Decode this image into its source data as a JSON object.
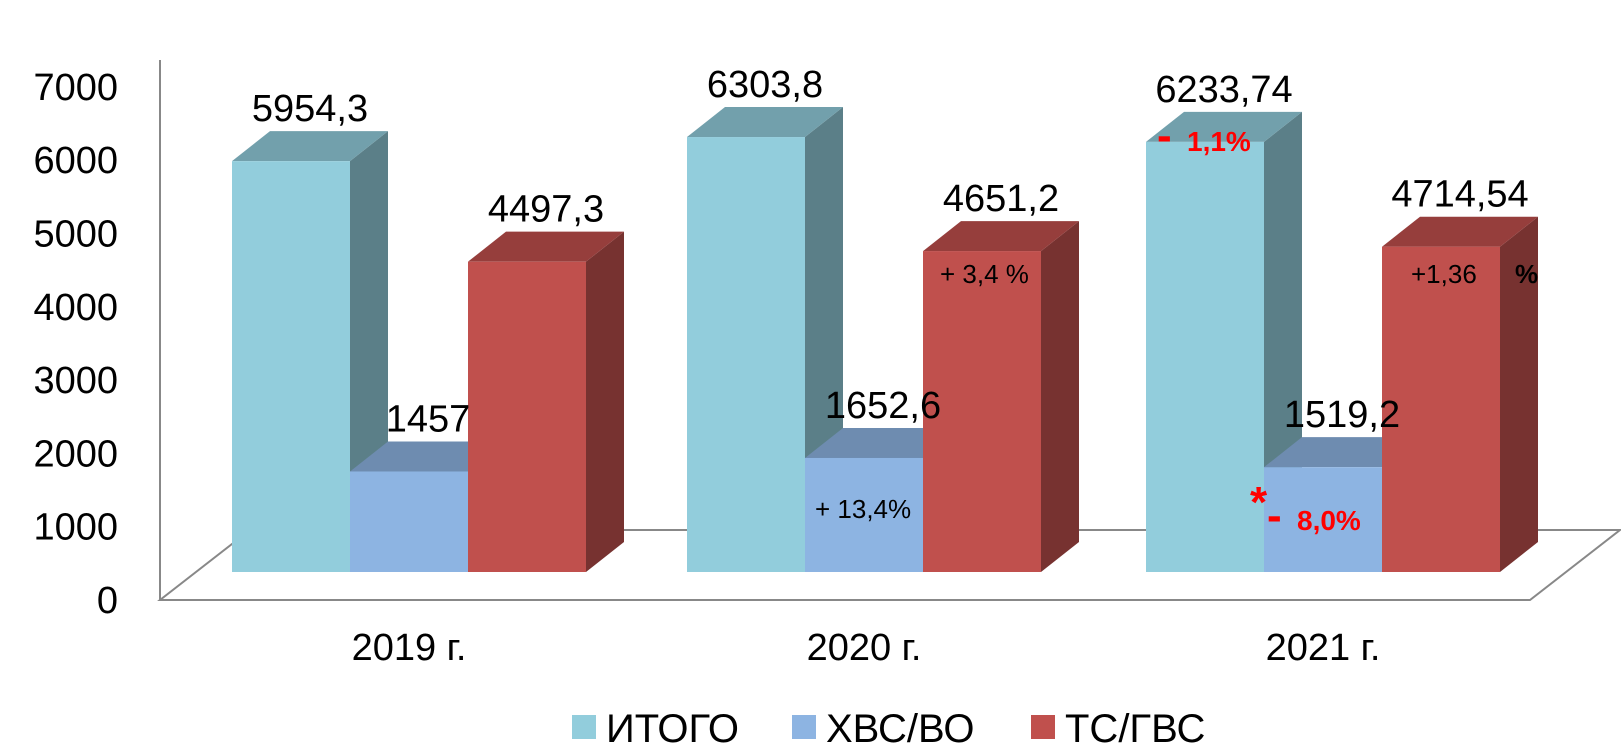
{
  "chart_data": {
    "type": "bar",
    "style": "3d-clustered",
    "categories": [
      "2019 г.",
      "2020 г.",
      "2021 г."
    ],
    "series": [
      {
        "name": "ИТОГО",
        "values": [
          5954.3,
          6303.8,
          6233.74
        ],
        "labels": [
          "5954,3",
          "6303,8",
          "6233,74"
        ],
        "color": "#92CDDC"
      },
      {
        "name": "ХВС/ВО",
        "values": [
          1457,
          1652.6,
          1519.2
        ],
        "labels": [
          "1457",
          "1652,6",
          "1519,2"
        ],
        "color": "#8DB4E2"
      },
      {
        "name": "ТС/ГВС",
        "values": [
          4497.3,
          4651.2,
          4714.54
        ],
        "labels": [
          "4497,3",
          "4651,2",
          "4714,54"
        ],
        "color": "#C0504D"
      }
    ],
    "yticks": [
      "0",
      "1000",
      "2000",
      "3000",
      "4000",
      "5000",
      "6000",
      "7000"
    ],
    "ylim": [
      0,
      7000
    ],
    "legend_position": "bottom",
    "annotations": {
      "hvs_2020": "+ 13,4%",
      "ts_2020": "+ 3,4 %",
      "total_2021_sign": "-",
      "total_2021_value": "1,1%",
      "hvs_2021_star": "*",
      "hvs_2021_sign": "-",
      "hvs_2021_value": "8,0%",
      "ts_2021_value": "+1,36",
      "ts_2021_percent": "%"
    }
  }
}
